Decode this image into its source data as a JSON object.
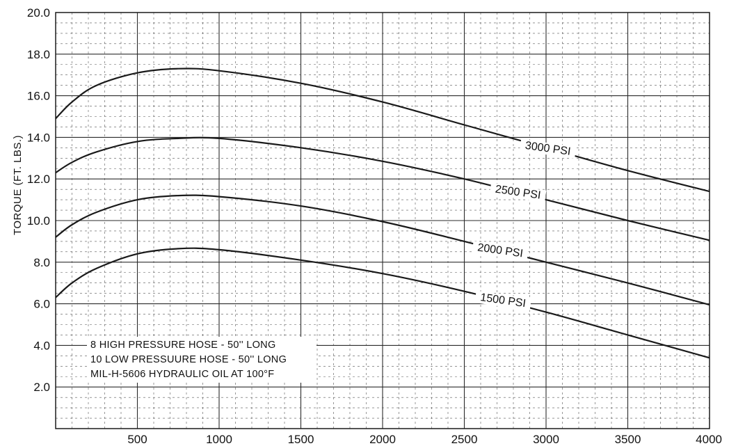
{
  "chart_data": {
    "type": "line",
    "title": "",
    "xlabel": "",
    "ylabel": "TORQUE (FT. LBS.)",
    "xlim": [
      0,
      4000
    ],
    "ylim": [
      0,
      20
    ],
    "x_ticks": [
      "500",
      "1000",
      "1500",
      "2000",
      "2500",
      "3000",
      "3500",
      "4000"
    ],
    "y_ticks": [
      "2.0",
      "4.0",
      "6.0",
      "8.0",
      "10.0",
      "12.0",
      "14.0",
      "16.0",
      "18.0",
      "20.0"
    ],
    "grid": true,
    "x": [
      0,
      100,
      250,
      500,
      750,
      1000,
      1500,
      2000,
      2500,
      3000,
      3500,
      4000
    ],
    "series": [
      {
        "name": "3000 PSI",
        "values": [
          14.9,
          15.7,
          16.5,
          17.1,
          17.3,
          17.2,
          16.6,
          15.7,
          14.6,
          13.5,
          12.4,
          11.4
        ]
      },
      {
        "name": "2500 PSI",
        "values": [
          12.3,
          12.8,
          13.3,
          13.8,
          13.95,
          13.95,
          13.5,
          12.85,
          12.0,
          11.0,
          10.0,
          9.05
        ]
      },
      {
        "name": "2000 PSI",
        "values": [
          9.2,
          9.8,
          10.4,
          11.0,
          11.2,
          11.15,
          10.7,
          9.95,
          9.0,
          8.0,
          7.0,
          5.95
        ]
      },
      {
        "name": "1500 PSI",
        "values": [
          6.3,
          7.0,
          7.7,
          8.4,
          8.65,
          8.6,
          8.1,
          7.45,
          6.6,
          5.6,
          4.5,
          3.4
        ]
      }
    ],
    "notes": [
      "8 HIGH PRESSURE HOSE - 50'' LONG",
      "10 LOW PRESSUURE HOSE - 50'' LONG",
      "MIL-H-5606 HYDRAULIC OIL AT 100°F"
    ],
    "colors": {
      "line": "#1a1a1a",
      "grid_major": "#2a2a2a",
      "grid_minor": "#555555",
      "background": "#ffffff"
    }
  }
}
